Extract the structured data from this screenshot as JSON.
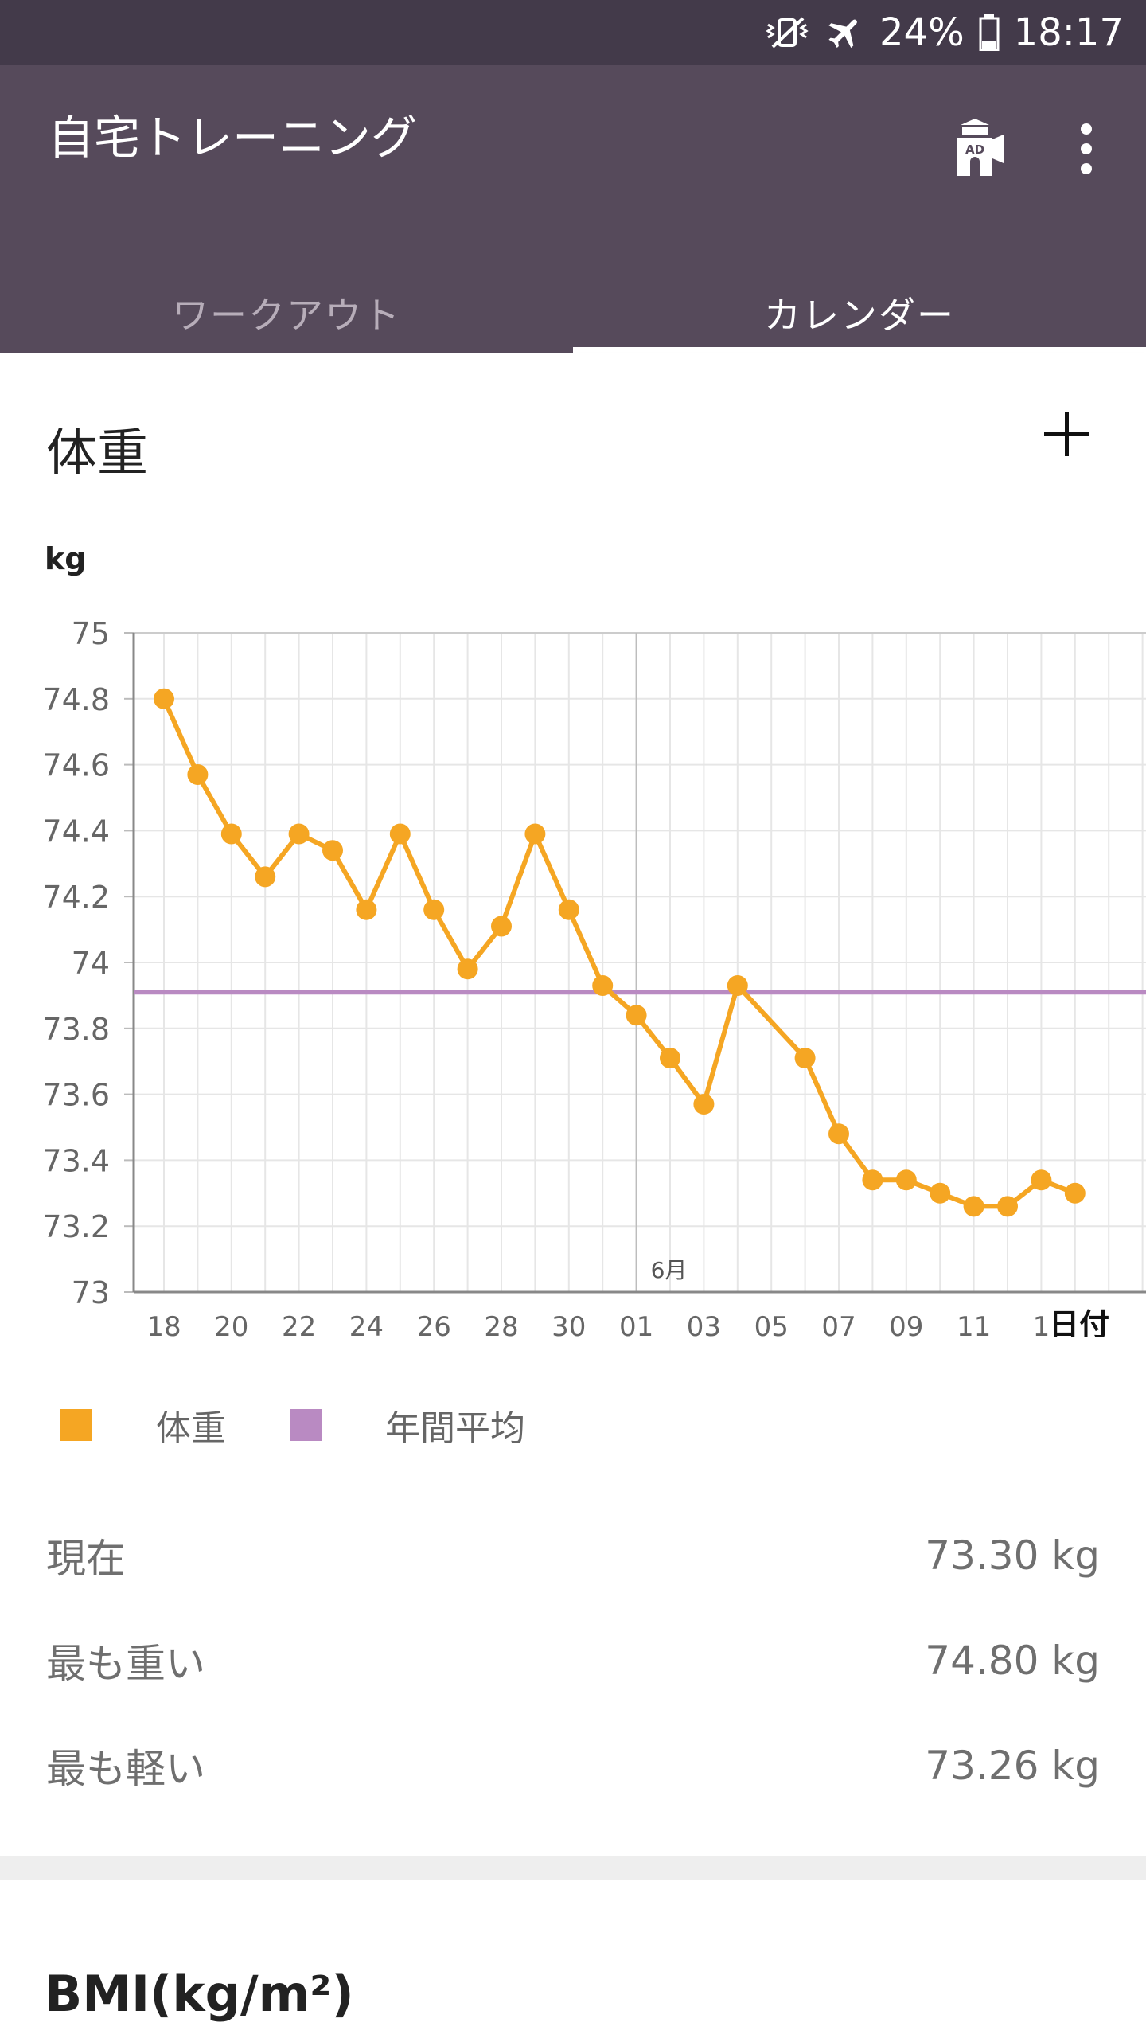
{
  "status_bar": {
    "battery": "24%",
    "time": "18:17",
    "icons": [
      "vibrate-muted-icon",
      "airplane-mode-icon",
      "battery-icon"
    ]
  },
  "app_bar": {
    "title": "自宅トレーニング",
    "actions": [
      "remove-ads-icon",
      "more-vert-icon"
    ],
    "ad_badge": "AD"
  },
  "tabs": [
    {
      "label": "ワークアウト",
      "active": false
    },
    {
      "label": "カレンダー",
      "active": true
    }
  ],
  "weight_card": {
    "title": "体重",
    "add_action": "plus-icon"
  },
  "chart_data": {
    "type": "line",
    "ylabel": "kg",
    "xlabel": "日付",
    "ylim": [
      73,
      75
    ],
    "y_ticks": [
      73,
      73.2,
      73.4,
      73.6,
      73.8,
      74,
      74.2,
      74.4,
      74.6,
      74.8,
      75
    ],
    "y_tick_labels": [
      "73",
      "73.2",
      "73.4",
      "73.6",
      "73.8",
      "74",
      "74.2",
      "74.4",
      "74.6",
      "74.8",
      "75"
    ],
    "x_start_label": "18",
    "x_tick_labels": [
      "18",
      "20",
      "22",
      "24",
      "26",
      "28",
      "30",
      "01",
      "03",
      "05",
      "07",
      "09",
      "11",
      "1"
    ],
    "month_marker": {
      "label": "6月",
      "index": 14
    },
    "series": [
      {
        "name": "体重",
        "color": "#f5a623",
        "x": [
          "05/18",
          "05/19",
          "05/20",
          "05/21",
          "05/22",
          "05/23",
          "05/24",
          "05/25",
          "05/26",
          "05/27",
          "05/28",
          "05/29",
          "05/30",
          "05/31",
          "06/01",
          "06/02",
          "06/03",
          "06/04",
          "06/06",
          "06/07",
          "06/08",
          "06/09",
          "06/10",
          "06/11",
          "06/12",
          "06/13",
          "06/14"
        ],
        "values": [
          74.8,
          74.57,
          74.39,
          74.26,
          74.39,
          74.34,
          74.16,
          74.39,
          74.16,
          73.98,
          74.11,
          74.39,
          74.16,
          73.93,
          73.84,
          73.71,
          73.57,
          73.93,
          73.71,
          73.48,
          73.34,
          73.34,
          73.3,
          73.26,
          73.26,
          73.34,
          73.3
        ]
      },
      {
        "name": "年間平均",
        "color": "#b98ac2",
        "value": 73.91,
        "style": "horizontal-line"
      }
    ],
    "grid": true,
    "legend": "bottom-left"
  },
  "legend": [
    {
      "label": "体重",
      "color": "#f5a623"
    },
    {
      "label": "年間平均",
      "color": "#b98ac2"
    }
  ],
  "stats": [
    {
      "label": "現在",
      "value": "73.30 kg"
    },
    {
      "label": "最も重い",
      "value": "74.80 kg"
    },
    {
      "label": "最も軽い",
      "value": "73.26 kg"
    }
  ],
  "bmi_card": {
    "title": "BMI(kg/m²)"
  }
}
